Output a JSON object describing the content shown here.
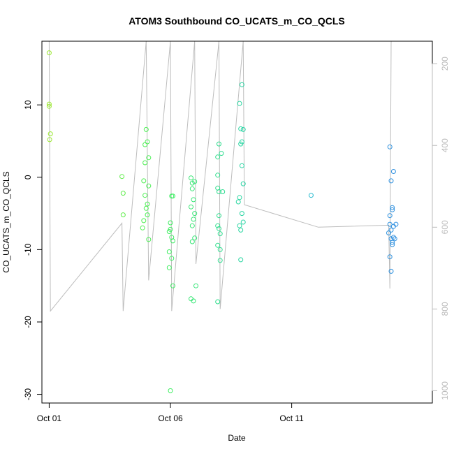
{
  "chart_data": {
    "type": "scatter",
    "title": "ATOM3 Southbound CO_UCATS_m_CO_QCLS",
    "xlabel": "Date",
    "ylabel": "CO_UCATS_m_CO_QCLS",
    "x_tick_labels": [
      {
        "day": 1,
        "label": "Oct 01"
      },
      {
        "day": 6,
        "label": "Oct 06"
      },
      {
        "day": 11,
        "label": "Oct 11"
      }
    ],
    "xlim": [
      0.7,
      16.8
    ],
    "ylim": [
      -31.2,
      18.8
    ],
    "y_ticks": [
      -30,
      -20,
      -10,
      0,
      10
    ],
    "right_axis": {
      "label": "",
      "ticks": [
        200,
        400,
        600,
        800,
        1000
      ],
      "lim": [
        1030,
        145
      ],
      "color": "#bbbbbb"
    },
    "grid": false,
    "series": [
      {
        "color_stops": [
          "#9be830",
          "#3ef05a",
          "#1fc8c8",
          "#2e8ee0"
        ],
        "points": [
          [
            1.0,
            17.2
          ],
          [
            1.0,
            10.1
          ],
          [
            1.0,
            9.8
          ],
          [
            1.05,
            6.0
          ],
          [
            1.02,
            5.2
          ],
          [
            4.0,
            0.1
          ],
          [
            4.05,
            -2.2
          ],
          [
            4.05,
            -5.2
          ],
          [
            5.0,
            6.6
          ],
          [
            5.05,
            4.9
          ],
          [
            4.95,
            4.5
          ],
          [
            5.1,
            2.7
          ],
          [
            4.95,
            2.0
          ],
          [
            4.9,
            -0.5
          ],
          [
            5.1,
            -1.2
          ],
          [
            4.95,
            -2.5
          ],
          [
            5.05,
            -3.7
          ],
          [
            5.0,
            -4.3
          ],
          [
            5.05,
            -5.2
          ],
          [
            4.9,
            -6.0
          ],
          [
            4.85,
            -7.0
          ],
          [
            5.1,
            -8.6
          ],
          [
            6.05,
            -2.6
          ],
          [
            6.1,
            -2.6
          ],
          [
            6.0,
            -6.3
          ],
          [
            6.0,
            -7.2
          ],
          [
            5.95,
            -7.5
          ],
          [
            6.05,
            -8.3
          ],
          [
            6.1,
            -8.8
          ],
          [
            5.95,
            -10.3
          ],
          [
            6.05,
            -11.2
          ],
          [
            5.95,
            -12.5
          ],
          [
            6.1,
            -15.0
          ],
          [
            6.0,
            -29.5
          ],
          [
            6.85,
            -0.1
          ],
          [
            6.9,
            -0.8
          ],
          [
            7.0,
            -0.6
          ],
          [
            6.9,
            -1.6
          ],
          [
            6.85,
            -4.1
          ],
          [
            6.95,
            -3.1
          ],
          [
            7.0,
            -5.0
          ],
          [
            6.95,
            -5.8
          ],
          [
            6.9,
            -6.7
          ],
          [
            7.0,
            -8.4
          ],
          [
            6.9,
            -8.9
          ],
          [
            7.05,
            -15.0
          ],
          [
            6.85,
            -16.8
          ],
          [
            6.95,
            -17.1
          ],
          [
            8.0,
            4.6
          ],
          [
            7.95,
            2.8
          ],
          [
            8.1,
            3.3
          ],
          [
            7.95,
            0.3
          ],
          [
            7.95,
            -1.5
          ],
          [
            8.0,
            -2.0
          ],
          [
            8.15,
            -2.0
          ],
          [
            8.0,
            -5.3
          ],
          [
            7.95,
            -6.7
          ],
          [
            8.0,
            -7.1
          ],
          [
            8.05,
            -7.8
          ],
          [
            7.95,
            -9.4
          ],
          [
            8.05,
            -10.0
          ],
          [
            8.05,
            -11.5
          ],
          [
            7.95,
            -17.2
          ],
          [
            8.95,
            12.8
          ],
          [
            8.85,
            10.2
          ],
          [
            8.9,
            6.7
          ],
          [
            9.0,
            6.6
          ],
          [
            8.95,
            4.9
          ],
          [
            8.9,
            4.6
          ],
          [
            8.95,
            1.6
          ],
          [
            9.0,
            -0.9
          ],
          [
            8.85,
            -2.8
          ],
          [
            8.8,
            -3.4
          ],
          [
            8.95,
            -5.0
          ],
          [
            9.0,
            -6.2
          ],
          [
            8.85,
            -6.7
          ],
          [
            8.9,
            -7.3
          ],
          [
            8.9,
            -11.4
          ],
          [
            11.8,
            -2.5
          ],
          [
            15.05,
            4.2
          ],
          [
            15.1,
            -0.5
          ],
          [
            15.2,
            0.8
          ],
          [
            15.05,
            -5.3
          ],
          [
            15.15,
            -4.2
          ],
          [
            15.15,
            -4.5
          ],
          [
            15.05,
            -6.5
          ],
          [
            15.1,
            -7.3
          ],
          [
            15.0,
            -7.7
          ],
          [
            15.1,
            -8.5
          ],
          [
            15.15,
            -9.3
          ],
          [
            15.05,
            -11.0
          ],
          [
            15.1,
            -13.0
          ],
          [
            15.3,
            -6.5
          ],
          [
            15.2,
            -6.8
          ],
          [
            15.2,
            -8.3
          ],
          [
            15.25,
            -8.5
          ],
          [
            15.15,
            -9.0
          ]
        ]
      }
    ],
    "altitude_profile": [
      [
        1.0,
        145
      ],
      [
        1.05,
        805
      ],
      [
        4.0,
        590
      ],
      [
        4.05,
        805
      ],
      [
        5.0,
        145
      ],
      [
        5.1,
        730
      ],
      [
        6.0,
        145
      ],
      [
        6.05,
        805
      ],
      [
        7.0,
        145
      ],
      [
        7.05,
        690
      ],
      [
        8.0,
        145
      ],
      [
        8.05,
        800
      ],
      [
        9.0,
        145
      ],
      [
        9.05,
        545
      ],
      [
        12.1,
        600
      ],
      [
        15.0,
        595
      ],
      [
        15.05,
        750
      ],
      [
        15.1,
        145
      ]
    ]
  }
}
